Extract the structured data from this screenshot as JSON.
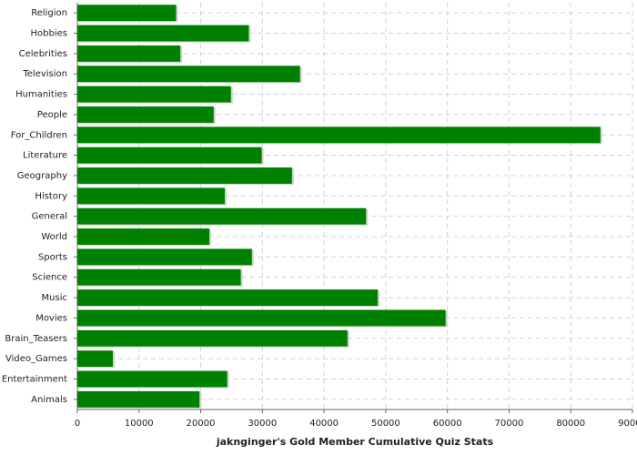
{
  "chart_data": {
    "type": "barh",
    "title": "jaknginger's Gold Member Cumulative Quiz Stats",
    "categories": [
      "Religion",
      "Hobbies",
      "Celebrities",
      "Television",
      "Humanities",
      "People",
      "For_Children",
      "Literature",
      "Geography",
      "History",
      "General",
      "World",
      "Sports",
      "Science",
      "Music",
      "Movies",
      "Brain_Teasers",
      "Video_Games",
      "Entertainment",
      "Animals"
    ],
    "values": [
      16000,
      27800,
      16700,
      36100,
      24900,
      22100,
      84800,
      29900,
      34800,
      23900,
      46800,
      21400,
      28300,
      26500,
      48700,
      59700,
      43800,
      5750,
      24300,
      19800
    ],
    "color": "#008000",
    "xlim": [
      0,
      90000
    ],
    "xticks": [
      0,
      10000,
      20000,
      30000,
      40000,
      50000,
      60000,
      70000,
      80000,
      90000
    ],
    "grid": true
  }
}
